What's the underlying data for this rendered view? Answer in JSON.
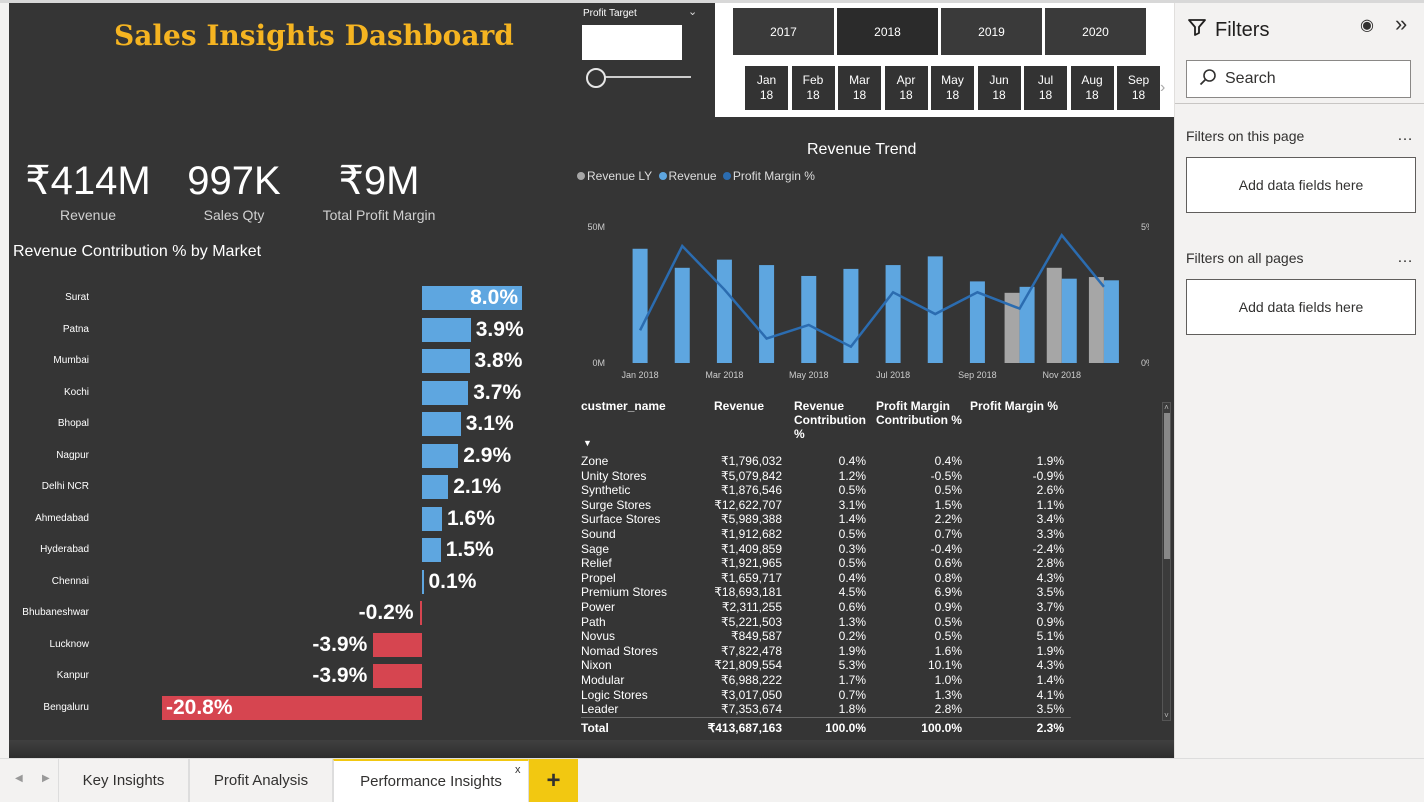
{
  "dashboard": {
    "title": "Sales Insights Dashboard",
    "kpis": [
      {
        "value": "₹414M",
        "label": "Revenue"
      },
      {
        "value": "997K",
        "label": "Sales Qty"
      },
      {
        "value": "₹9M",
        "label": "Total Profit Margin"
      }
    ]
  },
  "profit_target": {
    "label": "Profit Target",
    "value": "",
    "slider_fraction": 0
  },
  "date_slicer": {
    "years": [
      "2017",
      "2018",
      "2019",
      "2020"
    ],
    "selected_year": "2018",
    "months": [
      {
        "m": "Jan",
        "y": "18"
      },
      {
        "m": "Feb",
        "y": "18"
      },
      {
        "m": "Mar",
        "y": "18"
      },
      {
        "m": "Apr",
        "y": "18"
      },
      {
        "m": "May",
        "y": "18"
      },
      {
        "m": "Jun",
        "y": "18"
      },
      {
        "m": "Jul",
        "y": "18"
      },
      {
        "m": "Aug",
        "y": "18"
      },
      {
        "m": "Sep",
        "y": "18"
      }
    ],
    "next_icon": "chevron-right"
  },
  "market_chart": {
    "title": "Revenue Contribution % by Market",
    "colors": {
      "positive": "#5ea6e0",
      "negative": "#d64550"
    }
  },
  "trend_chart": {
    "title": "Revenue Trend",
    "legend": [
      {
        "label": "Revenue LY",
        "color": "#a6a6a6"
      },
      {
        "label": "Revenue",
        "color": "#5ea6e0"
      },
      {
        "label": "Profit Margin %",
        "color": "#2b6cb0"
      }
    ],
    "y_left_ticks": [
      "50M",
      "0M"
    ],
    "y_right_ticks": [
      "5%",
      "0%"
    ],
    "x_ticks": [
      "Jan 2018",
      "Mar 2018",
      "May 2018",
      "Jul 2018",
      "Sep 2018",
      "Nov 2018"
    ]
  },
  "table": {
    "headers": [
      "custmer_name",
      "Revenue",
      "Revenue Contribution %",
      "Profit Margin Contribution %",
      "Profit Margin %"
    ],
    "rows": [
      [
        "Zone",
        "₹1,796,032",
        "0.4%",
        "0.4%",
        "1.9%"
      ],
      [
        "Unity Stores",
        "₹5,079,842",
        "1.2%",
        "-0.5%",
        "-0.9%"
      ],
      [
        "Synthetic",
        "₹1,876,546",
        "0.5%",
        "0.5%",
        "2.6%"
      ],
      [
        "Surge Stores",
        "₹12,622,707",
        "3.1%",
        "1.5%",
        "1.1%"
      ],
      [
        "Surface Stores",
        "₹5,989,388",
        "1.4%",
        "2.2%",
        "3.4%"
      ],
      [
        "Sound",
        "₹1,912,682",
        "0.5%",
        "0.7%",
        "3.3%"
      ],
      [
        "Sage",
        "₹1,409,859",
        "0.3%",
        "-0.4%",
        "-2.4%"
      ],
      [
        "Relief",
        "₹1,921,965",
        "0.5%",
        "0.6%",
        "2.8%"
      ],
      [
        "Propel",
        "₹1,659,717",
        "0.4%",
        "0.8%",
        "4.3%"
      ],
      [
        "Premium Stores",
        "₹18,693,181",
        "4.5%",
        "6.9%",
        "3.5%"
      ],
      [
        "Power",
        "₹2,311,255",
        "0.6%",
        "0.9%",
        "3.7%"
      ],
      [
        "Path",
        "₹5,221,503",
        "1.3%",
        "0.5%",
        "0.9%"
      ],
      [
        "Novus",
        "₹849,587",
        "0.2%",
        "0.5%",
        "5.1%"
      ],
      [
        "Nomad Stores",
        "₹7,822,478",
        "1.9%",
        "1.6%",
        "1.9%"
      ],
      [
        "Nixon",
        "₹21,809,554",
        "5.3%",
        "10.1%",
        "4.3%"
      ],
      [
        "Modular",
        "₹6,988,222",
        "1.7%",
        "1.0%",
        "1.4%"
      ],
      [
        "Logic Stores",
        "₹3,017,050",
        "0.7%",
        "1.3%",
        "4.1%"
      ],
      [
        "Leader",
        "₹7,353,674",
        "1.8%",
        "2.8%",
        "3.5%"
      ]
    ],
    "total": [
      "Total",
      "₹413,687,163",
      "100.0%",
      "100.0%",
      "2.3%"
    ]
  },
  "filters_pane": {
    "title": "Filters",
    "search_placeholder": "Search",
    "sections": [
      {
        "label": "Filters on this page",
        "add_label": "Add data fields here"
      },
      {
        "label": "Filters on all pages",
        "add_label": "Add data fields here"
      }
    ],
    "more_icon": "ellipsis",
    "eye_icon": "eye",
    "collapse_icon": "double-chevron-right"
  },
  "page_tabs": {
    "tabs": [
      "Key Insights",
      "Profit Analysis",
      "Performance Insights"
    ],
    "active": "Performance Insights",
    "close_label": "x",
    "add_label": "+"
  },
  "chart_data": [
    {
      "type": "bar",
      "title": "Revenue Contribution % by Market",
      "orientation": "horizontal",
      "categories": [
        "Surat",
        "Patna",
        "Mumbai",
        "Kochi",
        "Bhopal",
        "Nagpur",
        "Delhi NCR",
        "Ahmedabad",
        "Hyderabad",
        "Chennai",
        "Bhubaneshwar",
        "Lucknow",
        "Kanpur",
        "Bengaluru"
      ],
      "values": [
        8.0,
        3.9,
        3.8,
        3.7,
        3.1,
        2.9,
        2.1,
        1.6,
        1.5,
        0.1,
        -0.2,
        -3.9,
        -3.9,
        -20.8
      ],
      "labels": [
        "8.0%",
        "3.9%",
        "3.8%",
        "3.7%",
        "3.1%",
        "2.9%",
        "2.1%",
        "1.6%",
        "1.5%",
        "0.1%",
        "-0.2%",
        "-3.9%",
        "-3.9%",
        "-20.8%"
      ]
    },
    {
      "type": "bar",
      "title": "Revenue Trend",
      "categories": [
        "Jan 2018",
        "Feb 2018",
        "Mar 2018",
        "Apr 2018",
        "May 2018",
        "Jun 2018",
        "Jul 2018",
        "Aug 2018",
        "Sep 2018",
        "Oct 2018",
        "Nov 2018",
        "Dec 2018"
      ],
      "ylim_left": [
        0,
        50
      ],
      "ylim_right": [
        0,
        5
      ],
      "series": [
        {
          "name": "Revenue LY",
          "type": "bar",
          "values": [
            null,
            null,
            null,
            null,
            null,
            null,
            null,
            null,
            null,
            25.8,
            35.0,
            31.6
          ]
        },
        {
          "name": "Revenue",
          "type": "bar",
          "values": [
            42.0,
            35.0,
            38.0,
            36.0,
            32.0,
            34.6,
            36.0,
            39.2,
            30.0,
            28.0,
            31.0,
            30.4
          ]
        },
        {
          "name": "Profit Margin %",
          "type": "line",
          "axis": "right",
          "values": [
            1.2,
            4.3,
            2.7,
            0.9,
            1.4,
            0.6,
            2.6,
            1.8,
            2.6,
            2.0,
            4.7,
            2.8
          ]
        }
      ]
    }
  ]
}
